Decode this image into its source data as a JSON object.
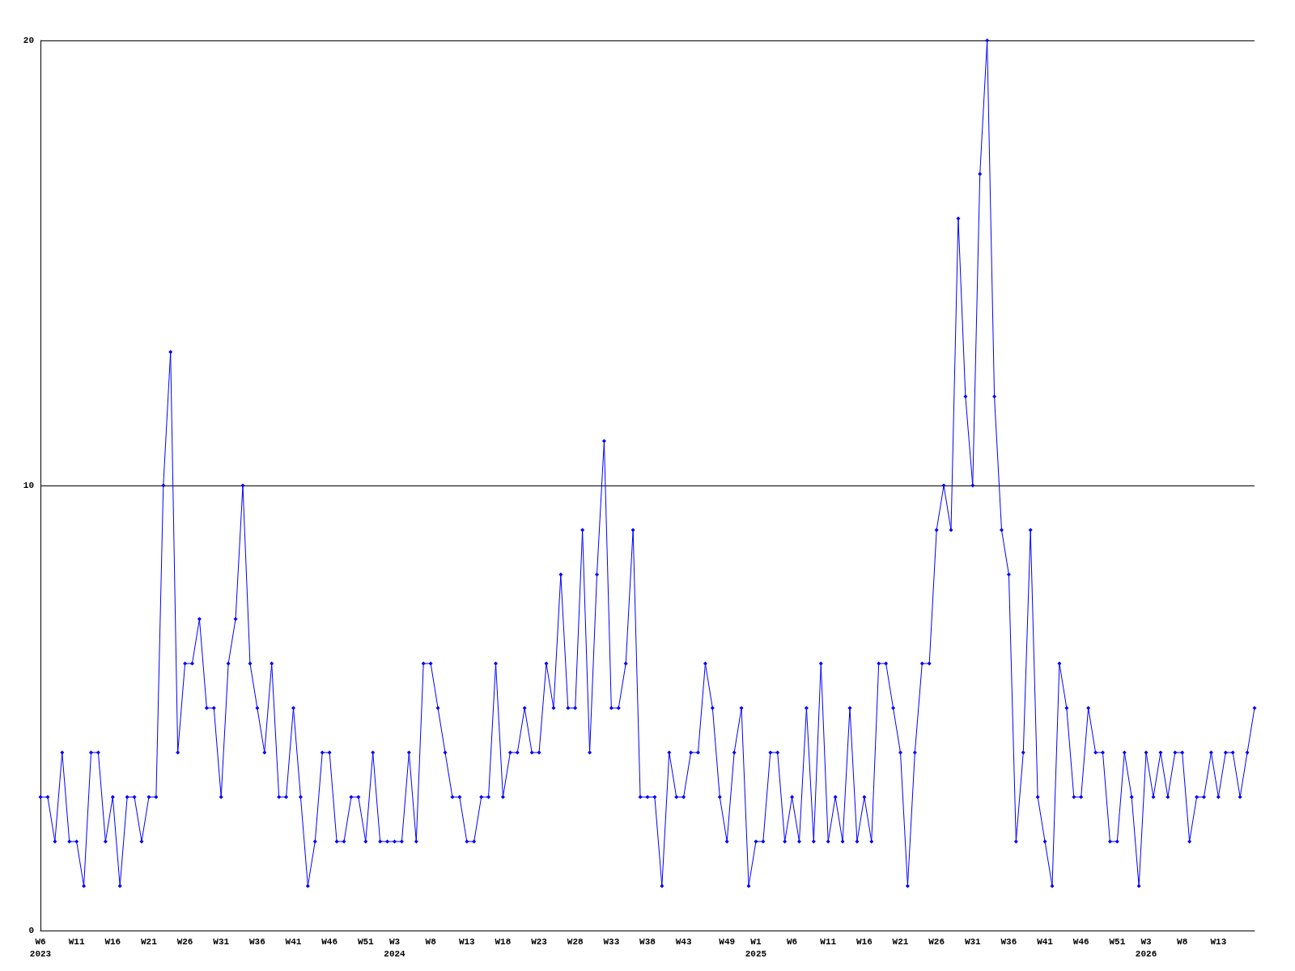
{
  "chart_data": {
    "type": "line",
    "categories": [
      "W6\n2023",
      null,
      null,
      null,
      null,
      "W11",
      null,
      null,
      null,
      null,
      "W16",
      null,
      null,
      null,
      null,
      "W21",
      null,
      null,
      null,
      null,
      "W26",
      null,
      null,
      null,
      null,
      "W31",
      null,
      null,
      null,
      null,
      "W36",
      null,
      null,
      null,
      null,
      "W41",
      null,
      null,
      null,
      null,
      "W46",
      null,
      null,
      null,
      null,
      "W51",
      null,
      null,
      null,
      "W3\n2024",
      null,
      null,
      null,
      null,
      "W8",
      null,
      null,
      null,
      null,
      "W13",
      null,
      null,
      null,
      null,
      "W18",
      null,
      null,
      null,
      null,
      "W23",
      null,
      null,
      null,
      null,
      "W28",
      null,
      null,
      null,
      null,
      "W33",
      null,
      null,
      null,
      null,
      "W38",
      null,
      null,
      null,
      null,
      "W43",
      null,
      null,
      null,
      null,
      null,
      "W49",
      null,
      null,
      null,
      "W1\n2025",
      null,
      null,
      null,
      null,
      "W6",
      null,
      null,
      null,
      null,
      "W11",
      null,
      null,
      null,
      null,
      "W16",
      null,
      null,
      null,
      null,
      "W21",
      null,
      null,
      null,
      null,
      "W26",
      null,
      null,
      null,
      null,
      "W31",
      null,
      null,
      null,
      null,
      "W36",
      null,
      null,
      null,
      null,
      "W41",
      null,
      null,
      null,
      null,
      "W46",
      null,
      null,
      null,
      null,
      "W51",
      null,
      null,
      null,
      "W3\n2026",
      null,
      null,
      null,
      null,
      "W8",
      null,
      null,
      null,
      null,
      "W13",
      null,
      null,
      null,
      null,
      null
    ],
    "series": [
      {
        "color": "#0000ff",
        "values": [
          3,
          3,
          2,
          4,
          2,
          2,
          1,
          4,
          4,
          2,
          3,
          1,
          3,
          3,
          2,
          3,
          3,
          10,
          13,
          4,
          6,
          6,
          7,
          5,
          5,
          3,
          6,
          7,
          10,
          6,
          5,
          4,
          6,
          3,
          3,
          5,
          3,
          1,
          2,
          4,
          4,
          2,
          2,
          3,
          3,
          2,
          4,
          2,
          2,
          2,
          2,
          4,
          2,
          6,
          6,
          5,
          4,
          3,
          3,
          2,
          2,
          3,
          3,
          6,
          3,
          4,
          4,
          5,
          4,
          4,
          6,
          5,
          8,
          5,
          5,
          9,
          4,
          8,
          11,
          5,
          5,
          6,
          9,
          3,
          3,
          3,
          1,
          4,
          3,
          3,
          4,
          4,
          6,
          5,
          3,
          2,
          4,
          5,
          1,
          2,
          2,
          4,
          4,
          2,
          3,
          2,
          5,
          2,
          6,
          2,
          3,
          2,
          5,
          2,
          3,
          2,
          6,
          6,
          5,
          4,
          1,
          4,
          6,
          6,
          9,
          10,
          9,
          16,
          12,
          10,
          17,
          20,
          12,
          9,
          8,
          2,
          4,
          9,
          3,
          2,
          1,
          6,
          5,
          3,
          3,
          5,
          4,
          4,
          2,
          2,
          4,
          3,
          1,
          4,
          3,
          4,
          3,
          4,
          4,
          2,
          3,
          3,
          4,
          3,
          4,
          4,
          3,
          4,
          5
        ]
      }
    ],
    "ylim": [
      0,
      20
    ],
    "yticks": [
      0,
      10,
      20
    ],
    "grid": "y",
    "marker": "diamond",
    "line_style": "solid"
  }
}
